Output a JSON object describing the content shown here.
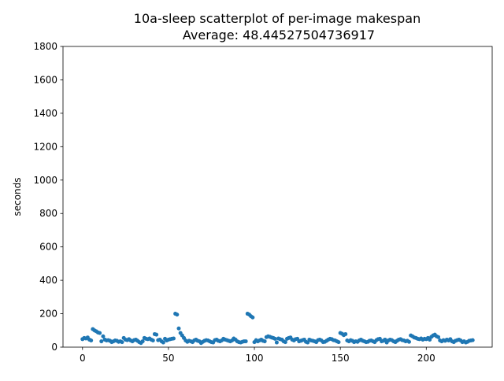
{
  "chart_data": {
    "type": "scatter",
    "title": "10a-sleep scatterplot of per-image makespan",
    "subtitle": "Average: 48.44527504736917",
    "y_label": "seconds",
    "color": "#1f77b4",
    "xlim": [
      -11.35,
      238.35
    ],
    "xticks": [
      0,
      50,
      100,
      150,
      200
    ],
    "ylim": [
      0,
      1800
    ],
    "yticks": [
      0,
      200,
      400,
      600,
      800,
      1000,
      1200,
      1400,
      1600,
      1800
    ],
    "x": [
      0,
      1,
      2,
      3,
      4,
      5,
      6,
      7,
      8,
      9,
      10,
      11,
      12,
      13,
      14,
      15,
      16,
      17,
      18,
      19,
      20,
      21,
      22,
      23,
      24,
      25,
      26,
      27,
      28,
      29,
      30,
      31,
      32,
      33,
      34,
      35,
      36,
      37,
      38,
      39,
      40,
      41,
      42,
      43,
      44,
      45,
      46,
      47,
      48,
      49,
      50,
      51,
      52,
      53,
      54,
      55,
      56,
      57,
      58,
      59,
      60,
      61,
      62,
      63,
      64,
      65,
      66,
      67,
      68,
      69,
      70,
      71,
      72,
      73,
      74,
      75,
      76,
      77,
      78,
      79,
      80,
      81,
      82,
      83,
      84,
      85,
      86,
      87,
      88,
      89,
      90,
      91,
      92,
      93,
      94,
      95,
      96,
      97,
      98,
      99,
      100,
      101,
      102,
      103,
      104,
      105,
      106,
      107,
      108,
      109,
      110,
      111,
      112,
      113,
      114,
      115,
      116,
      117,
      118,
      119,
      120,
      121,
      122,
      123,
      124,
      125,
      126,
      127,
      128,
      129,
      130,
      131,
      132,
      133,
      134,
      135,
      136,
      137,
      138,
      139,
      140,
      141,
      142,
      143,
      144,
      145,
      146,
      147,
      148,
      149,
      150,
      151,
      152,
      153,
      154,
      155,
      156,
      157,
      158,
      159,
      160,
      161,
      162,
      163,
      164,
      165,
      166,
      167,
      168,
      169,
      170,
      171,
      172,
      173,
      174,
      175,
      176,
      177,
      178,
      179,
      180,
      181,
      182,
      183,
      184,
      185,
      186,
      187,
      188,
      189,
      190,
      191,
      192,
      193,
      194,
      195,
      196,
      197,
      198,
      199,
      200,
      201,
      202,
      203,
      204,
      205,
      206,
      207,
      208,
      209,
      210,
      211,
      212,
      213,
      214,
      215,
      216,
      217,
      218,
      219,
      220,
      221,
      222,
      223,
      224,
      225,
      226,
      227
    ],
    "values": [
      48,
      55,
      52,
      58,
      45,
      40,
      108,
      100,
      95,
      88,
      85,
      35,
      65,
      45,
      40,
      42,
      38,
      30,
      35,
      40,
      38,
      32,
      35,
      30,
      55,
      45,
      42,
      48,
      40,
      35,
      42,
      45,
      38,
      30,
      25,
      35,
      55,
      50,
      48,
      52,
      45,
      40,
      78,
      75,
      42,
      45,
      35,
      28,
      50,
      40,
      45,
      48,
      50,
      52,
      200,
      195,
      112,
      85,
      70,
      55,
      40,
      32,
      38,
      35,
      30,
      40,
      45,
      38,
      35,
      25,
      32,
      38,
      42,
      40,
      35,
      30,
      28,
      42,
      45,
      38,
      35,
      40,
      50,
      45,
      42,
      38,
      35,
      40,
      52,
      45,
      35,
      30,
      28,
      32,
      35,
      35,
      200,
      195,
      185,
      178,
      30,
      42,
      35,
      40,
      45,
      38,
      35,
      60,
      65,
      62,
      58,
      55,
      50,
      28,
      52,
      48,
      45,
      35,
      30,
      50,
      55,
      58,
      45,
      40,
      48,
      50,
      35,
      38,
      42,
      45,
      32,
      28,
      45,
      40,
      38,
      35,
      30,
      42,
      45,
      40,
      30,
      32,
      38,
      45,
      50,
      48,
      42,
      40,
      35,
      30,
      85,
      80,
      72,
      78,
      40,
      35,
      42,
      38,
      30,
      35,
      32,
      40,
      45,
      38,
      35,
      30,
      32,
      38,
      40,
      35,
      30,
      42,
      48,
      50,
      35,
      38,
      45,
      28,
      40,
      45,
      42,
      35,
      30,
      38,
      45,
      48,
      42,
      40,
      35,
      38,
      32,
      70,
      65,
      58,
      55,
      50,
      48,
      52,
      45,
      50,
      48,
      55,
      45,
      62,
      70,
      75,
      65,
      60,
      40,
      35,
      42,
      38,
      45,
      40,
      48,
      35,
      30,
      38,
      42,
      45,
      40,
      30,
      35,
      28,
      32,
      38,
      40,
      42
    ]
  }
}
